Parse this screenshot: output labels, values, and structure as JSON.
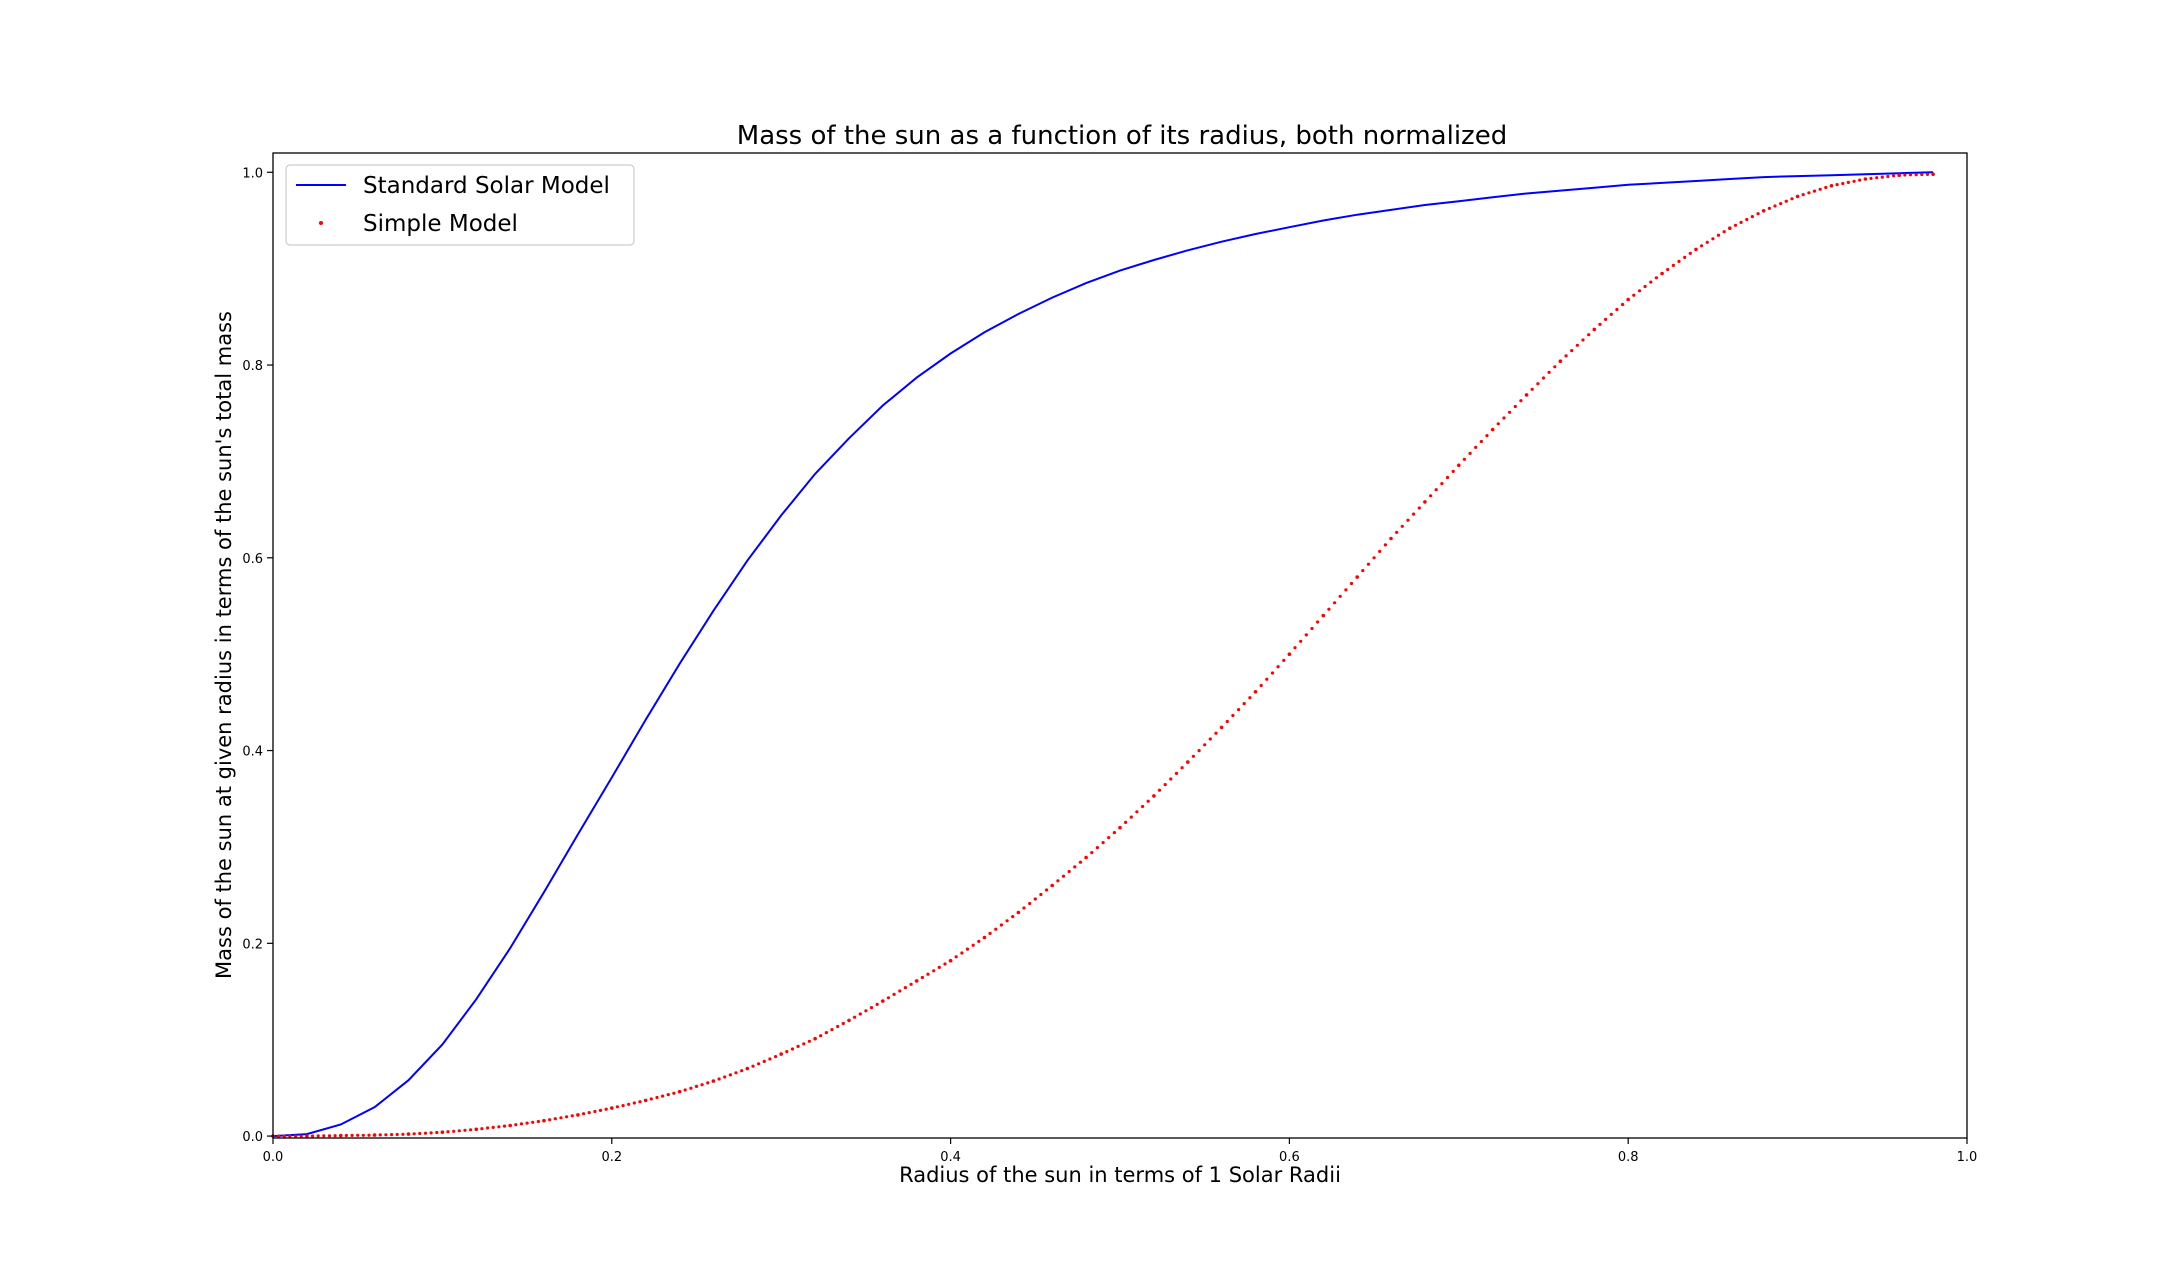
{
  "chart_data": {
    "type": "line+scatter",
    "title": "Mass of the sun as a function of its radius, both normalized",
    "xlabel": "Radius of the sun in terms of 1 Solar Radii",
    "ylabel": "Mass of the sun at given radius in terms of the sun's total mass",
    "xlim": [
      0.0,
      1.0
    ],
    "ylim": [
      -0.002,
      1.02
    ],
    "xticks": [
      "0.0",
      "0.2",
      "0.4",
      "0.6",
      "0.8",
      "1.0"
    ],
    "xtick_values": [
      0.0,
      0.2,
      0.4,
      0.6,
      0.8,
      1.0
    ],
    "yticks": [
      "0.0",
      "0.2",
      "0.4",
      "0.6",
      "0.8",
      "1.0"
    ],
    "ytick_values": [
      0.0,
      0.2,
      0.4,
      0.6,
      0.8,
      1.0
    ],
    "grid": false,
    "legend_position": "upper-left",
    "series": [
      {
        "name": "Standard Solar Model",
        "type": "line",
        "color": "#0000ff",
        "x": [
          0.0,
          0.02,
          0.04,
          0.06,
          0.08,
          0.1,
          0.12,
          0.14,
          0.16,
          0.18,
          0.2,
          0.22,
          0.24,
          0.26,
          0.28,
          0.3,
          0.32,
          0.34,
          0.36,
          0.38,
          0.4,
          0.42,
          0.44,
          0.46,
          0.48,
          0.5,
          0.52,
          0.54,
          0.56,
          0.58,
          0.6,
          0.62,
          0.64,
          0.66,
          0.68,
          0.7,
          0.72,
          0.74,
          0.76,
          0.78,
          0.8,
          0.82,
          0.84,
          0.86,
          0.88,
          0.9,
          0.92,
          0.94,
          0.96,
          0.98
        ],
        "y": [
          0.0,
          0.002,
          0.012,
          0.03,
          0.058,
          0.095,
          0.142,
          0.195,
          0.253,
          0.313,
          0.372,
          0.432,
          0.49,
          0.545,
          0.597,
          0.644,
          0.687,
          0.724,
          0.758,
          0.787,
          0.812,
          0.834,
          0.853,
          0.87,
          0.885,
          0.898,
          0.909,
          0.919,
          0.928,
          0.936,
          0.943,
          0.95,
          0.956,
          0.961,
          0.966,
          0.97,
          0.974,
          0.978,
          0.981,
          0.984,
          0.987,
          0.989,
          0.991,
          0.993,
          0.995,
          0.996,
          0.997,
          0.998,
          0.999,
          1.0
        ]
      },
      {
        "name": "Simple Model",
        "type": "scatter",
        "color": "#ff0000",
        "x": [
          0.0,
          0.02,
          0.04,
          0.06,
          0.08,
          0.1,
          0.12,
          0.14,
          0.16,
          0.18,
          0.2,
          0.22,
          0.24,
          0.26,
          0.28,
          0.3,
          0.32,
          0.34,
          0.36,
          0.38,
          0.4,
          0.42,
          0.44,
          0.46,
          0.48,
          0.5,
          0.52,
          0.54,
          0.56,
          0.58,
          0.6,
          0.62,
          0.64,
          0.66,
          0.68,
          0.7,
          0.72,
          0.74,
          0.76,
          0.78,
          0.8,
          0.82,
          0.84,
          0.86,
          0.88,
          0.9,
          0.92,
          0.94,
          0.96,
          0.98
        ],
        "y": [
          0.0,
          0.0,
          0.0005,
          0.001,
          0.002,
          0.004,
          0.007,
          0.011,
          0.016,
          0.022,
          0.029,
          0.037,
          0.046,
          0.057,
          0.07,
          0.085,
          0.101,
          0.12,
          0.14,
          0.161,
          0.182,
          0.206,
          0.232,
          0.26,
          0.289,
          0.32,
          0.353,
          0.388,
          0.424,
          0.461,
          0.5,
          0.54,
          0.58,
          0.62,
          0.658,
          0.696,
          0.733,
          0.769,
          0.804,
          0.837,
          0.868,
          0.895,
          0.92,
          0.942,
          0.96,
          0.975,
          0.986,
          0.993,
          0.997,
          0.998
        ]
      }
    ]
  }
}
